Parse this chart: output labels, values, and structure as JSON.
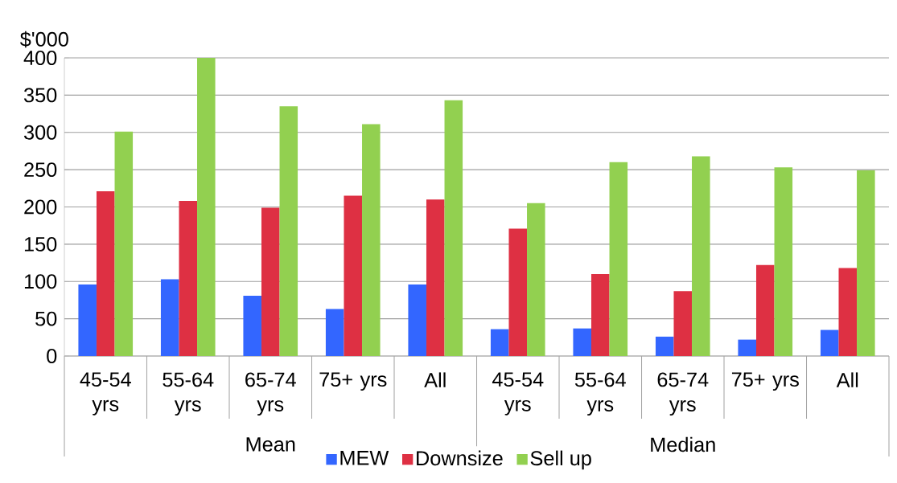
{
  "chart_data": {
    "type": "bar",
    "ylabel": "$'000",
    "categories": [
      "45-54 yrs",
      "55-64 yrs",
      "65-74 yrs",
      "75+ yrs",
      "All",
      "45-54 yrs",
      "55-64 yrs",
      "65-74 yrs",
      "75+ yrs",
      "All"
    ],
    "annotations": [
      "Mean",
      "Median"
    ],
    "series": [
      {
        "name": "MEW",
        "color": "#3366ff",
        "values": [
          96,
          103,
          81,
          63,
          96,
          36,
          37,
          26,
          22,
          35
        ]
      },
      {
        "name": "Downsize",
        "color": "#de3043",
        "values": [
          221,
          208,
          199,
          215,
          210,
          171,
          110,
          87,
          122,
          118
        ]
      },
      {
        "name": "Sell up",
        "color": "#92d050",
        "values": [
          301,
          400,
          335,
          311,
          343,
          205,
          260,
          268,
          253,
          249
        ]
      }
    ],
    "ylim": [
      0,
      400
    ],
    "yticks": [
      0,
      50,
      100,
      150,
      200,
      250,
      300,
      350,
      400
    ],
    "grid": "y",
    "legend": "bottom"
  }
}
